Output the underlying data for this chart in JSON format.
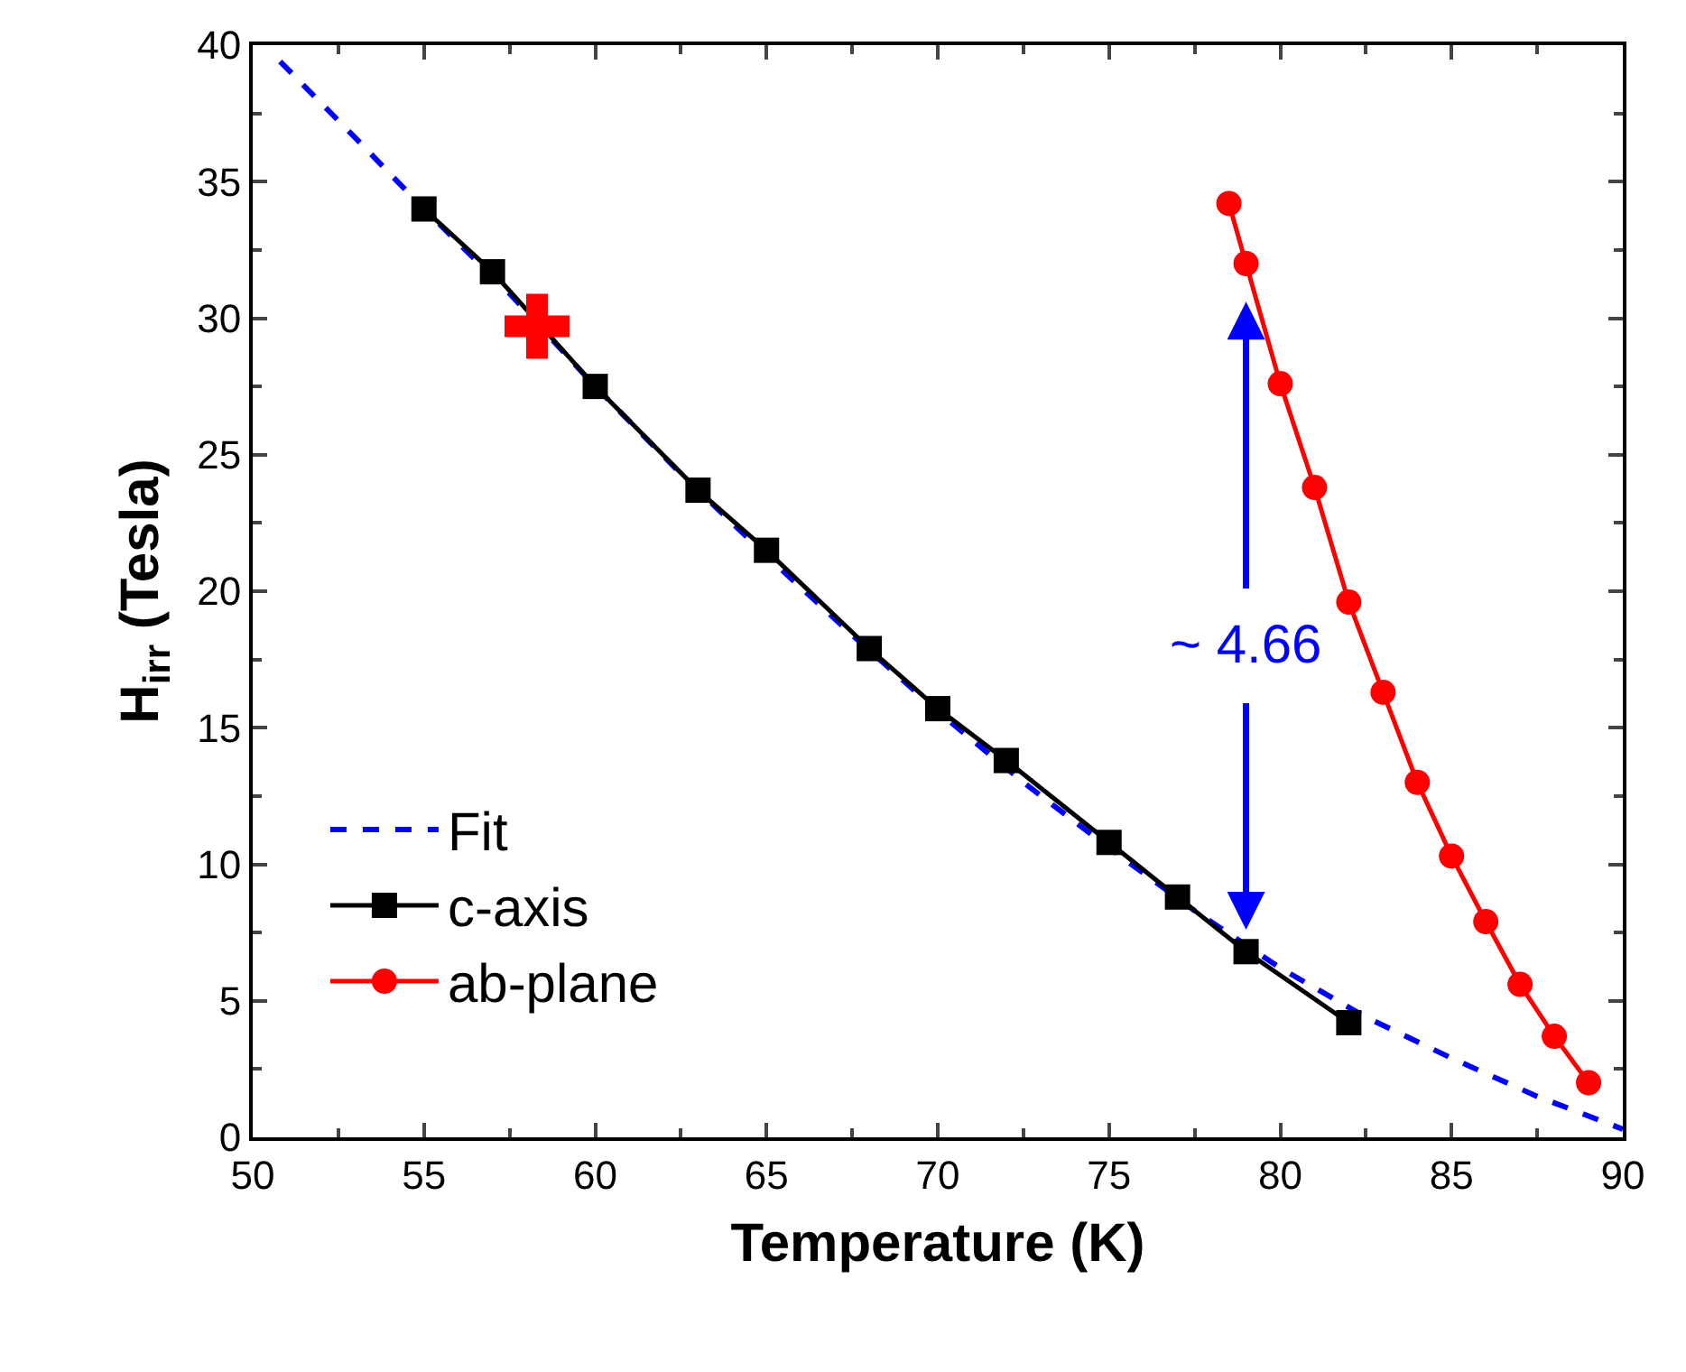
{
  "chart_data": {
    "type": "line",
    "xlabel": "Temperature (K)",
    "ylabel": "H$_{irr}$ (Tesla)",
    "xlim": [
      50,
      90
    ],
    "xticks": [
      50,
      55,
      60,
      65,
      70,
      75,
      80,
      85,
      90
    ],
    "ylim": [
      0,
      40
    ],
    "yticks": [
      0,
      5,
      10,
      15,
      20,
      25,
      30,
      35,
      40
    ],
    "legend": "bottom left",
    "series": [
      {
        "name": "Fit",
        "color": "#0000ff",
        "line_style": "dashed",
        "marker": "none",
        "x": [
          50.8,
          53,
          55,
          57.5,
          60,
          62.5,
          65,
          67.5,
          70,
          72.5,
          75,
          77.5,
          80,
          82.5,
          85,
          87.5,
          90
        ],
        "values": [
          39.4,
          36.6,
          34.0,
          30.9,
          27.5,
          24.3,
          21.3,
          18.4,
          15.6,
          13.0,
          10.6,
          8.3,
          6.2,
          4.4,
          2.9,
          1.5,
          0.3
        ]
      },
      {
        "name": "c-axis",
        "color": "#000000",
        "line_style": "solid",
        "marker": "square",
        "x": [
          55,
          57,
          60,
          63,
          65,
          68,
          70,
          72,
          75,
          77,
          79,
          82
        ],
        "values": [
          34.0,
          31.7,
          27.5,
          23.7,
          21.5,
          17.9,
          15.7,
          13.8,
          10.8,
          8.8,
          6.8,
          4.2
        ]
      },
      {
        "name": "ab-plane",
        "color": "#ff0000",
        "line_style": "solid",
        "marker": "circle",
        "x": [
          78.5,
          79,
          80,
          81,
          82,
          83,
          84,
          85,
          86,
          87,
          88,
          89
        ],
        "values": [
          34.2,
          32.0,
          27.6,
          23.8,
          19.6,
          16.3,
          13.0,
          10.3,
          7.9,
          5.6,
          3.7,
          2.0
        ]
      },
      {
        "type": "scatter",
        "color": "#ff0000",
        "marker": "cross",
        "x": [
          58.3
        ],
        "values": [
          29.7
        ]
      }
    ],
    "annotations": [
      "~ 4.66"
    ]
  }
}
